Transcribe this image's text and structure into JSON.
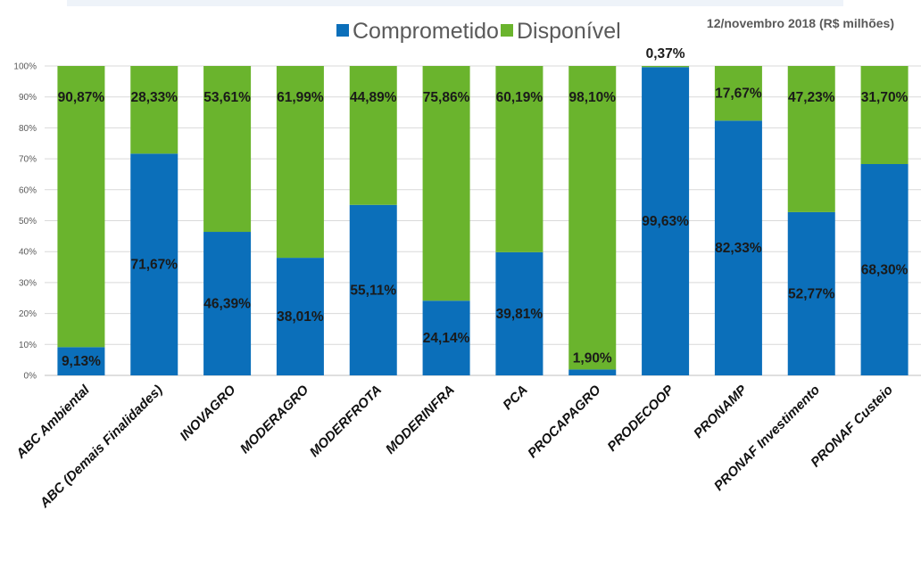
{
  "header": {
    "date_note": "12/novembro 2018 (R$ milhões)"
  },
  "colors": {
    "comprometido": "#0b6fba",
    "disponivel": "#6ab42d",
    "grid": "#d9d9d9",
    "axis": "#bfbfbf"
  },
  "chart_data": {
    "type": "bar",
    "stacked": true,
    "percent_stacked": true,
    "categories": [
      "ABC Ambiental",
      "ABC (Demais Finalidades)",
      "INOVAGRO",
      "MODERAGRO",
      "MODERFROTA",
      "MODERINFRA",
      "PCA",
      "PROCAPAGRO",
      "PRODECOOP",
      "PRONAMP",
      "PRONAF Investimento",
      "PRONAF Custeio"
    ],
    "series": [
      {
        "name": "Comprometido",
        "values": [
          9.13,
          71.67,
          46.39,
          38.01,
          55.11,
          24.14,
          39.81,
          1.9,
          99.63,
          82.33,
          52.77,
          68.3
        ],
        "labels": [
          "9,13%",
          "71,67%",
          "46,39%",
          "38,01%",
          "55,11%",
          "24,14%",
          "39,81%",
          "1,90%",
          "99,63%",
          "82,33%",
          "52,77%",
          "68,30%"
        ]
      },
      {
        "name": "Disponível",
        "values": [
          90.87,
          28.33,
          53.61,
          61.99,
          44.89,
          75.86,
          60.19,
          98.1,
          0.37,
          17.67,
          47.23,
          31.7
        ],
        "labels": [
          "90,87%",
          "28,33%",
          "53,61%",
          "61,99%",
          "44,89%",
          "75,86%",
          "60,19%",
          "98,10%",
          "0,37%",
          "17,67%",
          "47,23%",
          "31,70%"
        ]
      }
    ],
    "yticks": [
      "0%",
      "10%",
      "20%",
      "30%",
      "40%",
      "50%",
      "60%",
      "70%",
      "80%",
      "90%",
      "100%"
    ],
    "ylim": [
      0,
      100
    ],
    "grid": true,
    "legend_position": "top"
  }
}
